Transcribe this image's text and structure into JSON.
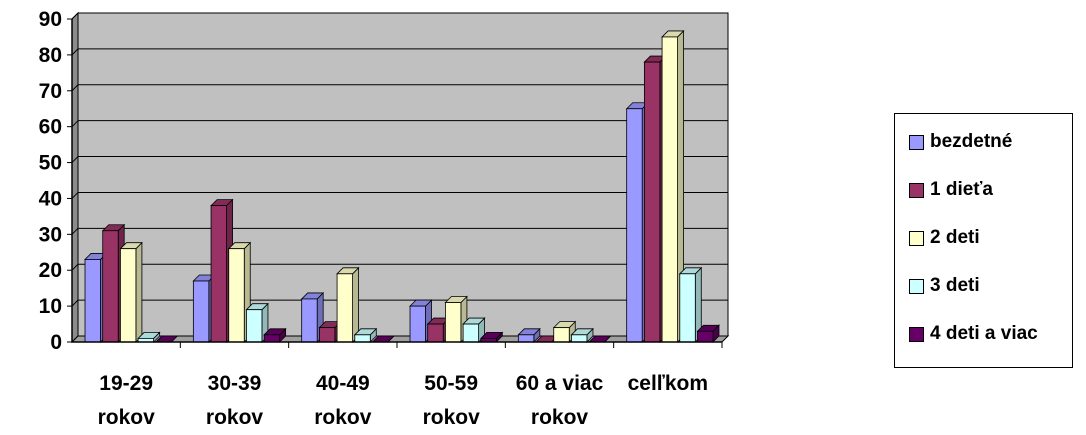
{
  "chart_data": {
    "type": "bar",
    "categories": [
      [
        "19-29",
        "rokov"
      ],
      [
        "30-39",
        "rokov"
      ],
      [
        "40-49",
        "rokov"
      ],
      [
        "50-59",
        "rokov"
      ],
      [
        "60 a viac",
        "rokov"
      ],
      [
        "celkom",
        ""
      ]
    ],
    "category_labels_display": [
      "19-29",
      "30-39",
      "40-49",
      "50-59",
      "60 a viac",
      "celľkom"
    ],
    "series": [
      {
        "name": "bezdetné",
        "color": "#9999FF",
        "values": [
          23,
          17,
          12,
          10,
          2,
          65
        ]
      },
      {
        "name": "1 dieťa",
        "color": "#993366",
        "values": [
          31,
          38,
          4,
          5,
          0,
          78
        ]
      },
      {
        "name": "2 deti",
        "color": "#FFFFCC",
        "values": [
          26,
          26,
          19,
          11,
          4,
          85
        ]
      },
      {
        "name": "3 deti",
        "color": "#CCFFFF",
        "values": [
          1,
          9,
          2,
          5,
          2,
          19
        ]
      },
      {
        "name": "4 deti a viac",
        "color": "#660066",
        "values": [
          0,
          2,
          0,
          1,
          0,
          3
        ]
      }
    ],
    "ylim": [
      0,
      90
    ],
    "yticks": [
      0,
      10,
      20,
      30,
      40,
      50,
      60,
      70,
      80,
      90
    ],
    "grid": true,
    "plot_background": "#C0C0C0",
    "legend_position": "right",
    "three_d": true
  }
}
